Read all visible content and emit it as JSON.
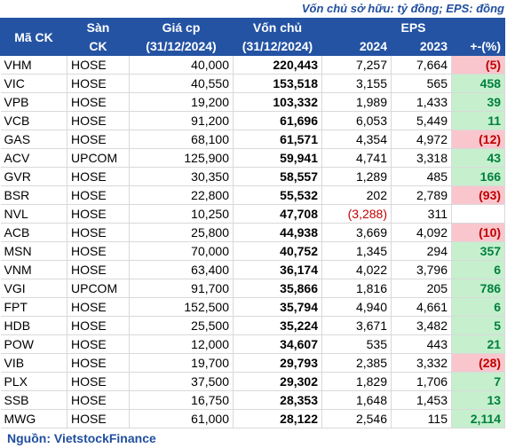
{
  "note": "Vốn chủ sở hữu: tỷ đồng; EPS: đồng",
  "header": {
    "ticker": "Mã CK",
    "exchange": [
      "Sàn",
      "CK"
    ],
    "price": [
      "Giá cp",
      "(31/12/2024)"
    ],
    "equity": [
      "Vốn chủ",
      "(31/12/2024)"
    ],
    "eps": "EPS",
    "eps_cols": [
      "2024",
      "2023",
      "+-(%)"
    ]
  },
  "table": {
    "rows": [
      [
        "VHM",
        "HOSE",
        "40,000",
        "220,443",
        "7,257",
        "7,664",
        "(5)"
      ],
      [
        "VIC",
        "HOSE",
        "40,550",
        "153,518",
        "3,155",
        "565",
        "458"
      ],
      [
        "VPB",
        "HOSE",
        "19,200",
        "103,332",
        "1,989",
        "1,433",
        "39"
      ],
      [
        "VCB",
        "HOSE",
        "91,200",
        "61,696",
        "6,053",
        "5,449",
        "11"
      ],
      [
        "GAS",
        "HOSE",
        "68,100",
        "61,571",
        "4,354",
        "4,972",
        "(12)"
      ],
      [
        "ACV",
        "UPCOM",
        "125,900",
        "59,941",
        "4,741",
        "3,318",
        "43"
      ],
      [
        "GVR",
        "HOSE",
        "30,350",
        "58,557",
        "1,289",
        "485",
        "166"
      ],
      [
        "BSR",
        "HOSE",
        "22,800",
        "55,532",
        "202",
        "2,789",
        "(93)"
      ],
      [
        "NVL",
        "HOSE",
        "10,250",
        "47,708",
        "(3,288)",
        "311",
        ""
      ],
      [
        "ACB",
        "HOSE",
        "25,800",
        "44,938",
        "3,669",
        "4,092",
        "(10)"
      ],
      [
        "MSN",
        "HOSE",
        "70,000",
        "40,752",
        "1,345",
        "294",
        "357"
      ],
      [
        "VNM",
        "HOSE",
        "63,400",
        "36,174",
        "4,022",
        "3,796",
        "6"
      ],
      [
        "VGI",
        "UPCOM",
        "91,700",
        "35,866",
        "1,816",
        "205",
        "786"
      ],
      [
        "FPT",
        "HOSE",
        "152,500",
        "35,794",
        "4,940",
        "4,661",
        "6"
      ],
      [
        "HDB",
        "HOSE",
        "25,500",
        "35,224",
        "3,671",
        "3,482",
        "5"
      ],
      [
        "POW",
        "HOSE",
        "12,000",
        "34,607",
        "535",
        "443",
        "21"
      ],
      [
        "VIB",
        "HOSE",
        "19,700",
        "29,793",
        "2,385",
        "3,332",
        "(28)"
      ],
      [
        "PLX",
        "HOSE",
        "37,500",
        "29,302",
        "1,829",
        "1,706",
        "7"
      ],
      [
        "SSB",
        "HOSE",
        "16,750",
        "28,353",
        "1,648",
        "1,453",
        "13"
      ],
      [
        "MWG",
        "HOSE",
        "61,000",
        "28,122",
        "2,546",
        "115",
        "2,114"
      ]
    ]
  },
  "source": "Nguồn: VietstockFinance"
}
